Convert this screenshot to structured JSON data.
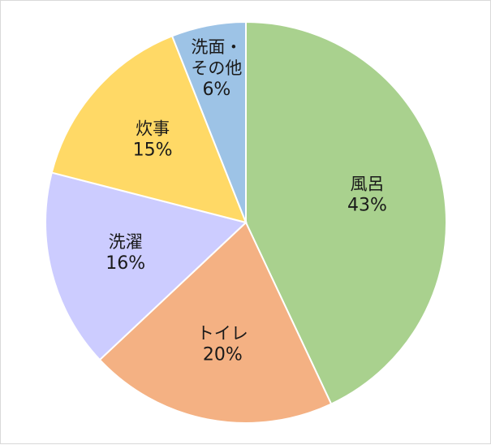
{
  "chart_data": {
    "type": "pie",
    "title": "",
    "start_angle_deg": 0,
    "direction": "clockwise",
    "legend": "none",
    "slices": [
      {
        "name": "風呂",
        "percent_label": "43%",
        "value": 43,
        "color": "#a9d18e"
      },
      {
        "name": "トイレ",
        "percent_label": "20%",
        "value": 20,
        "color": "#f4b183"
      },
      {
        "name": "洗濯",
        "percent_label": "16%",
        "value": 16,
        "color": "#ccccff"
      },
      {
        "name": "炊事",
        "percent_label": "15%",
        "value": 15,
        "color": "#ffd966"
      },
      {
        "name": "洗面・\nその他",
        "percent_label": "6%",
        "value": 6,
        "color": "#9dc3e6"
      }
    ]
  }
}
